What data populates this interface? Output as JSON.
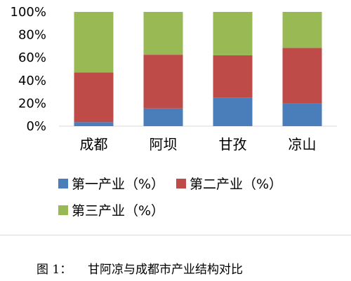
{
  "chart_data": {
    "type": "bar",
    "stacked": true,
    "percent_axis": true,
    "categories": [
      "成都",
      "阿坝",
      "甘孜",
      "凉山"
    ],
    "series": [
      {
        "name": "第一产业（%）",
        "color": "#4a7ebb",
        "values": [
          3.5,
          15.5,
          25,
          20
        ]
      },
      {
        "name": "第二产业（%）",
        "color": "#be4b48",
        "values": [
          43.5,
          47,
          37,
          48.5
        ]
      },
      {
        "name": "第三产业（%）",
        "color": "#98b954",
        "values": [
          53,
          37.5,
          38,
          31.5
        ]
      }
    ],
    "ylim": [
      0,
      100
    ],
    "yticks": [
      "0%",
      "20%",
      "40%",
      "60%",
      "80%",
      "100%"
    ],
    "ytick_values": [
      0,
      20,
      40,
      60,
      80,
      100
    ],
    "grid": false,
    "legend_position": "bottom"
  },
  "caption": {
    "label": "图 1：",
    "text": "甘阿凉与成都市产业结构对比"
  }
}
